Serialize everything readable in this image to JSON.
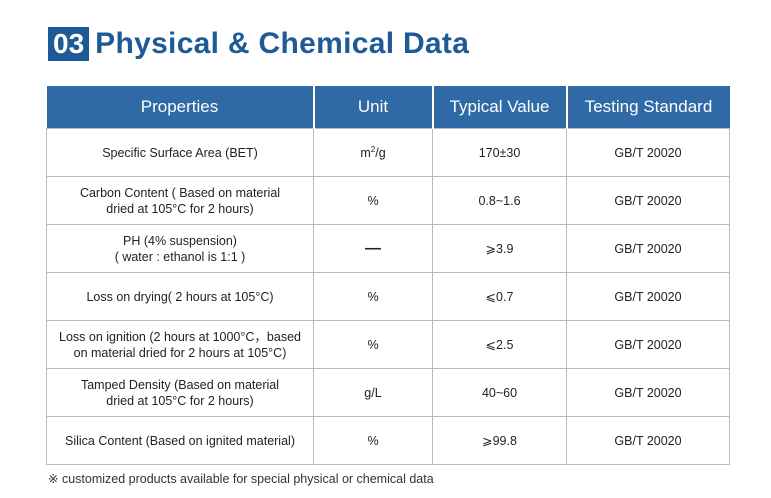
{
  "header": {
    "number": "03",
    "title": "Physical & Chemical Data"
  },
  "table": {
    "columns": [
      "Properties",
      "Unit",
      "Typical Value",
      "Testing Standard"
    ],
    "rows": [
      {
        "property_lines": [
          "Specific Surface Area (BET)"
        ],
        "unit": "m",
        "unit_sup": "2",
        "unit_suffix": "/g",
        "value": "170±30",
        "standard": "GB/T 20020"
      },
      {
        "property_lines": [
          "Carbon Content ( Based on material",
          "dried at 105°C for 2 hours)"
        ],
        "unit": "%",
        "unit_sup": "",
        "unit_suffix": "",
        "value": "0.8~1.6",
        "standard": "GB/T 20020"
      },
      {
        "property_lines": [
          "PH (4% suspension)",
          "( water : ethanol is 1:1 )"
        ],
        "unit": "—",
        "unit_sup": "",
        "unit_suffix": "",
        "value": "⩾3.9",
        "standard": "GB/T 20020"
      },
      {
        "property_lines": [
          "Loss on drying( 2 hours at 105°C)"
        ],
        "unit": "%",
        "unit_sup": "",
        "unit_suffix": "",
        "value": "⩽0.7",
        "standard": "GB/T 20020"
      },
      {
        "property_lines": [
          "Loss on ignition (2 hours at 1000°C，based",
          "on material dried for 2 hours at 105°C)"
        ],
        "unit": "%",
        "unit_sup": "",
        "unit_suffix": "",
        "value": "⩽2.5",
        "standard": "GB/T 20020"
      },
      {
        "property_lines": [
          "Tamped Density (Based on material",
          "dried at 105°C for 2 hours)"
        ],
        "unit": "g/L",
        "unit_sup": "",
        "unit_suffix": "",
        "value": "40~60",
        "standard": "GB/T 20020"
      },
      {
        "property_lines": [
          "Silica Content (Based on ignited material)"
        ],
        "unit": "%",
        "unit_sup": "",
        "unit_suffix": "",
        "value": "⩾99.8",
        "standard": "GB/T 20020"
      }
    ]
  },
  "note": "※ customized products available for special physical or chemical data",
  "colors": {
    "brand_blue": "#1d5a97",
    "header_blue": "#2f6aa6",
    "border_gray": "#b9b9b9"
  }
}
